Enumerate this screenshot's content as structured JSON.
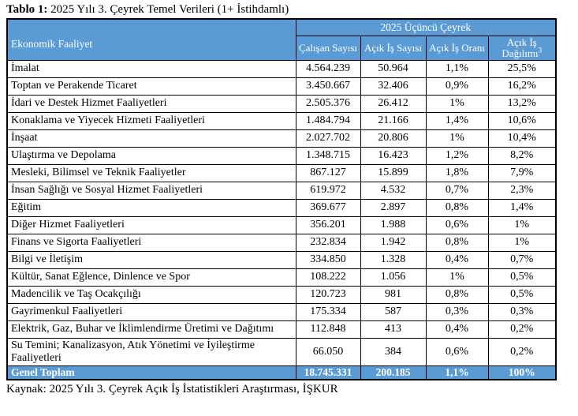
{
  "title": {
    "label": "Tablo 1:",
    "text": " 2025 Yılı 3. Çeyrek Temel Verileri (1+ İstihdamlı)"
  },
  "table": {
    "group_header": "2025 Üçüncü Çeyrek",
    "col1_header": "Ekonomik Faaliyet",
    "columns": [
      "Çalışan Sayısı",
      "Açık İş Sayısı",
      "Açık İş Oranı",
      "Açık İş Dağılımı"
    ],
    "footnote_marker": "3",
    "rows": [
      [
        "İmalat",
        "4.564.239",
        "50.964",
        "1,1%",
        "25,5%"
      ],
      [
        "Toptan ve Perakende Ticaret",
        "3.450.667",
        "32.406",
        "0,9%",
        "16,2%"
      ],
      [
        "İdari ve Destek Hizmet Faaliyetleri",
        "2.505.376",
        "26.412",
        "1%",
        "13,2%"
      ],
      [
        "Konaklama ve Yiyecek Hizmeti Faaliyetleri",
        "1.484.794",
        "21.166",
        "1,4%",
        "10,6%"
      ],
      [
        "İnşaat",
        "2.027.702",
        "20.806",
        "1%",
        "10,4%"
      ],
      [
        "Ulaştırma ve Depolama",
        "1.348.715",
        "16.423",
        "1,2%",
        "8,2%"
      ],
      [
        "Mesleki, Bilimsel ve Teknik Faaliyetler",
        "867.127",
        "15.899",
        "1,8%",
        "7,9%"
      ],
      [
        "İnsan Sağlığı ve Sosyal Hizmet Faaliyetleri",
        "619.972",
        "4.532",
        "0,7%",
        "2,3%"
      ],
      [
        "Eğitim",
        "369.677",
        "2.897",
        "0,8%",
        "1,4%"
      ],
      [
        "Diğer Hizmet Faaliyetleri",
        "356.201",
        "1.988",
        "0,6%",
        "1%"
      ],
      [
        "Finans ve Sigorta Faaliyetleri",
        "232.834",
        "1.942",
        "0,8%",
        "1%"
      ],
      [
        "Bilgi ve İletişim",
        "334.850",
        "1.328",
        "0,4%",
        "0,7%"
      ],
      [
        "Kültür, Sanat Eğlence, Dinlence ve Spor",
        "108.222",
        "1.056",
        "1%",
        "0,5%"
      ],
      [
        "Madencilik ve Taş Ocakçılığı",
        "120.723",
        "981",
        "0,8%",
        "0,5%"
      ],
      [
        "Gayrimenkul Faaliyetleri",
        "175.334",
        "587",
        "0,3%",
        "0,3%"
      ],
      [
        "Elektrik, Gaz, Buhar ve İklimlendirme Üretimi ve Dağıtımı",
        "112.848",
        "413",
        "0,4%",
        "0,2%"
      ],
      [
        "Su Temini; Kanalizasyon, Atık Yönetimi ve İyileştirme Faaliyetleri",
        "66.050",
        "384",
        "0,6%",
        "0,2%"
      ]
    ],
    "total": [
      "Genel Toplam",
      "18.745.331",
      "200.185",
      "1,1%",
      "100%"
    ]
  },
  "source": "Kaynak: 2025 Yılı 3. Çeyrek Açık İş İstatistikleri Araştırması, İŞKUR",
  "colors": {
    "header_bg": "#5B9BD5",
    "header_text": "#ffffff",
    "total_bg": "#5B9BD5",
    "border": "#000000"
  }
}
